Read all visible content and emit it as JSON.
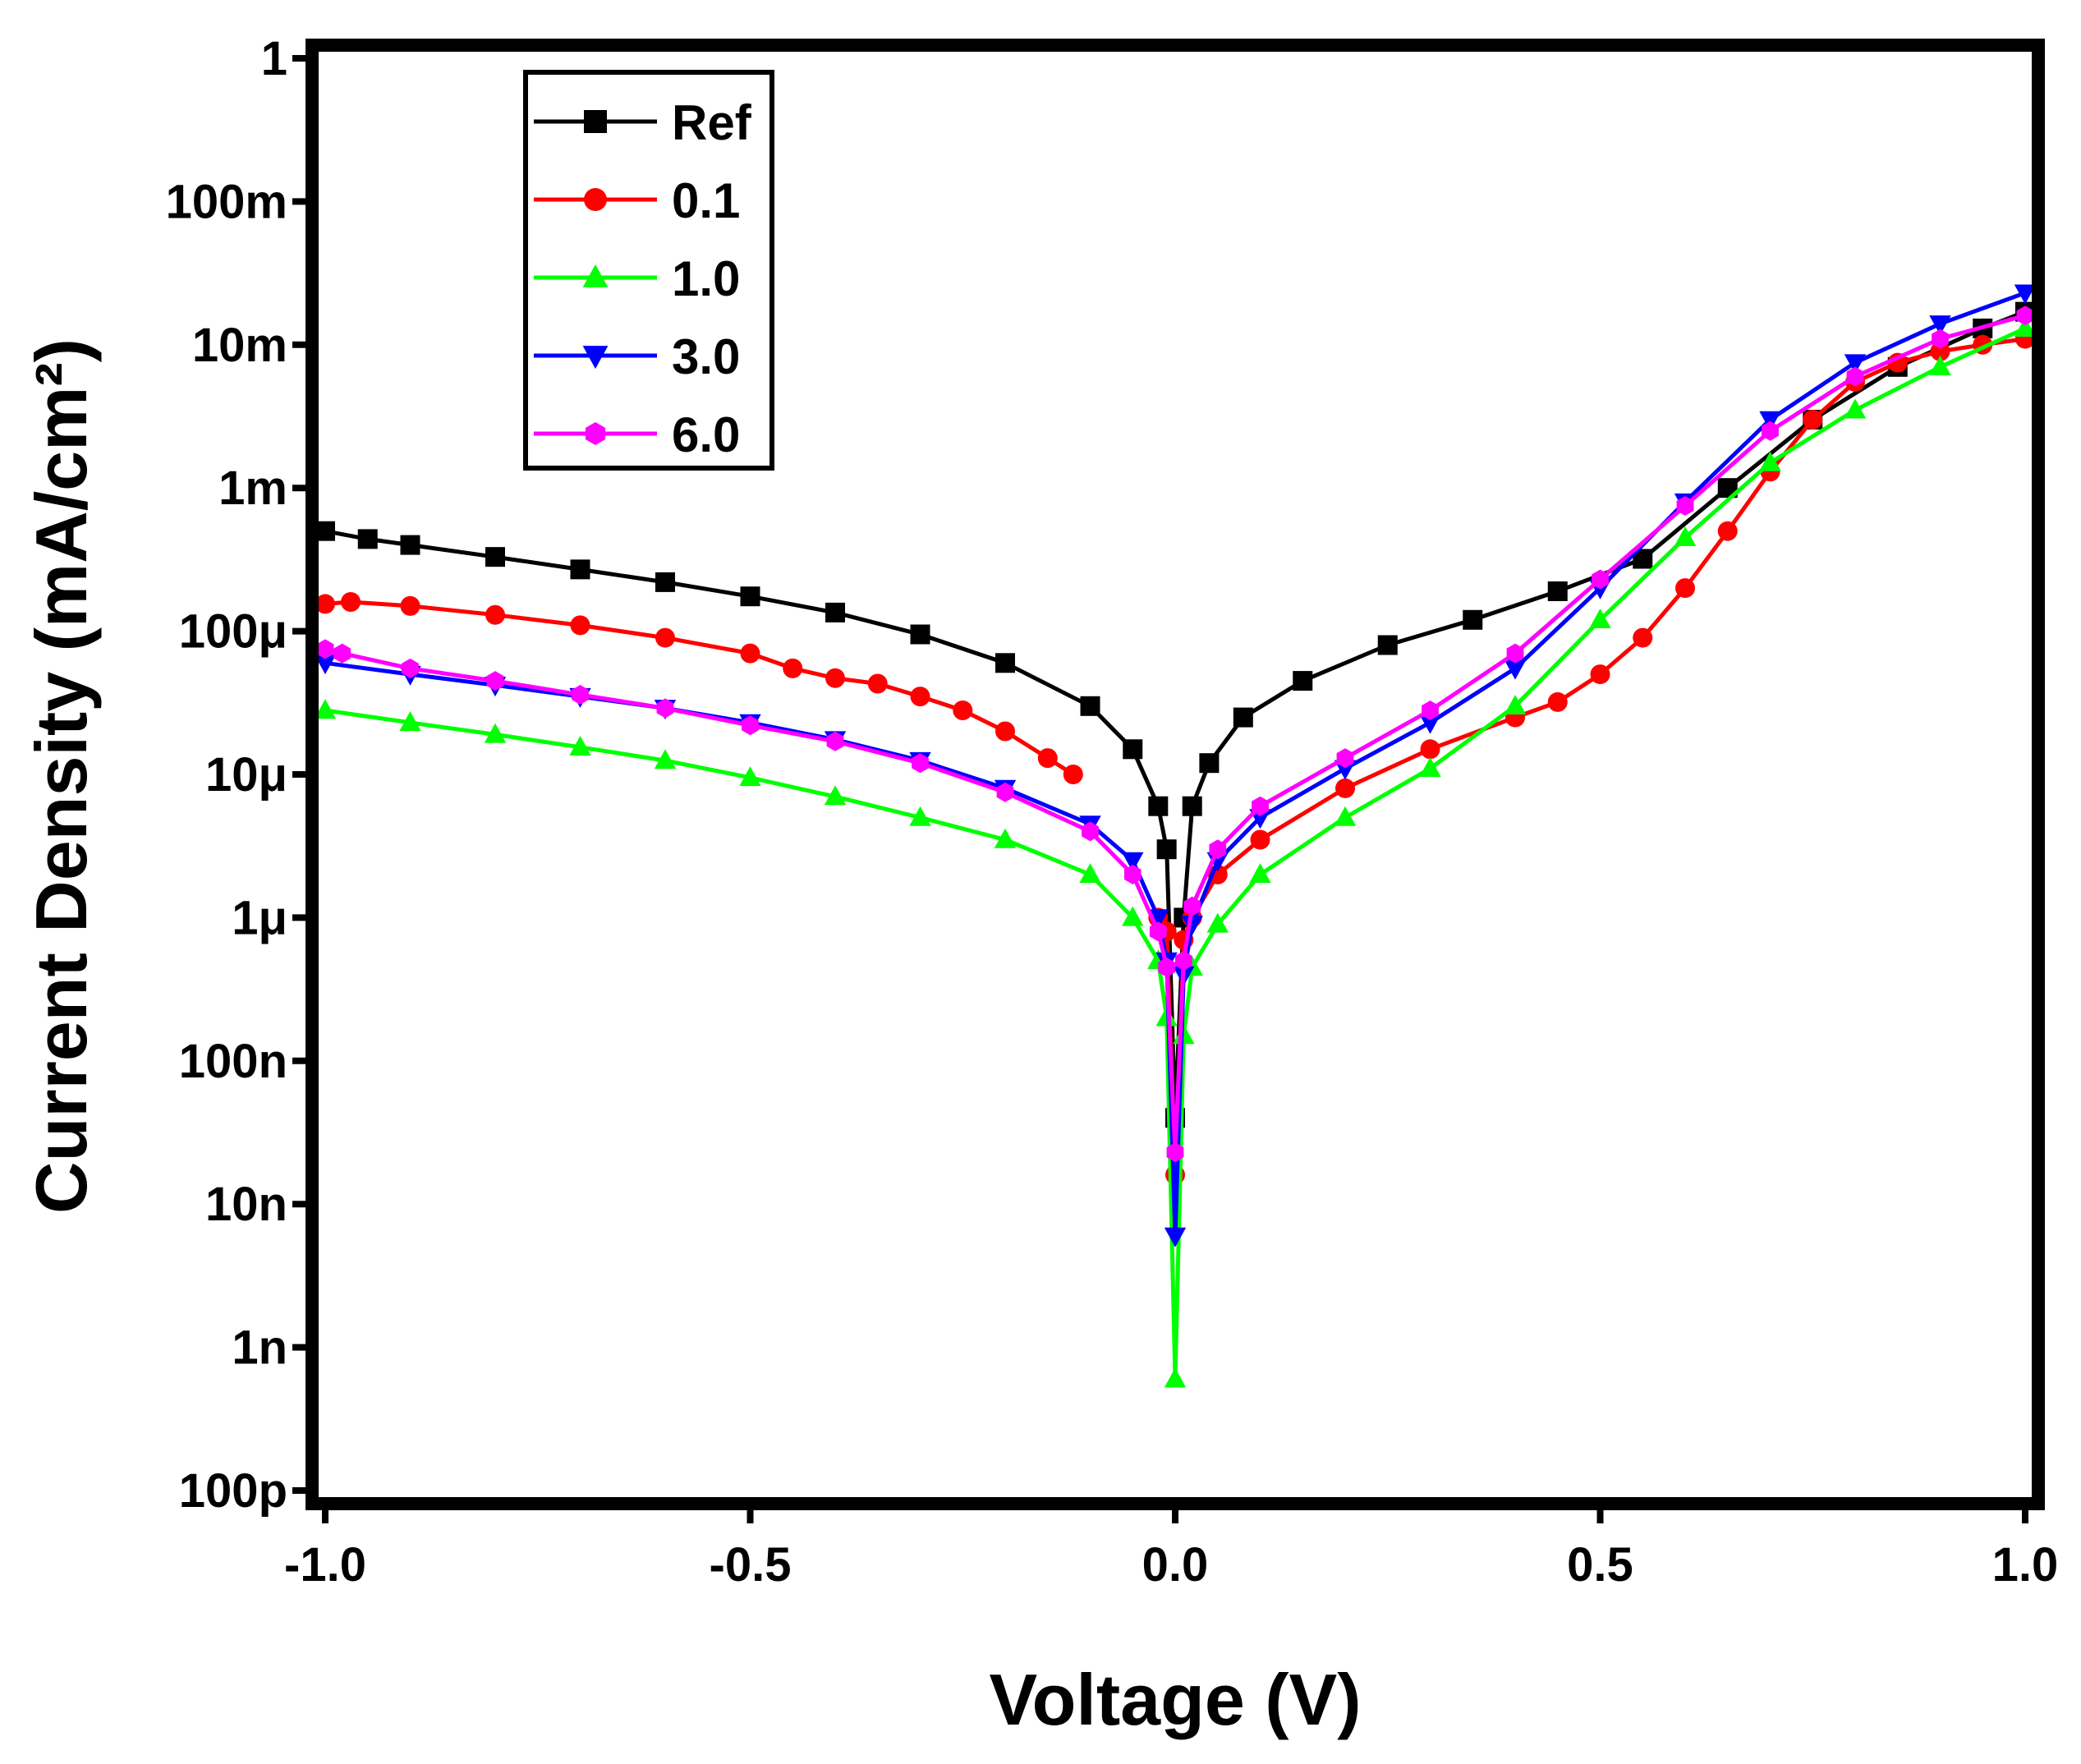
{
  "chart_data": {
    "type": "line",
    "title": "",
    "xlabel": "Voltage (V)",
    "ylabel": "Current Density (mA/cm²)",
    "xlim": [
      -1.0,
      1.0
    ],
    "ylim": [
      1e-10,
      1
    ],
    "yscale": "log",
    "grid": false,
    "legend_position": "top-left",
    "x_ticks": [
      {
        "value": -1.0,
        "label": "-1.0"
      },
      {
        "value": -0.5,
        "label": "-0.5"
      },
      {
        "value": 0.0,
        "label": "0.0"
      },
      {
        "value": 0.5,
        "label": "0.5"
      },
      {
        "value": 1.0,
        "label": "1.0"
      }
    ],
    "y_ticks": [
      {
        "value": 1e-10,
        "label": "100p"
      },
      {
        "value": 1e-09,
        "label": "1n"
      },
      {
        "value": 1e-08,
        "label": "10n"
      },
      {
        "value": 1e-07,
        "label": "100n"
      },
      {
        "value": 1e-06,
        "label": "1μ"
      },
      {
        "value": 1e-05,
        "label": "10μ"
      },
      {
        "value": 0.0001,
        "label": "100μ"
      },
      {
        "value": 0.001,
        "label": "1m"
      },
      {
        "value": 0.01,
        "label": "10m"
      },
      {
        "value": 0.1,
        "label": "100m"
      },
      {
        "value": 1,
        "label": "1"
      }
    ],
    "series": [
      {
        "name": "Ref",
        "color": "#000000",
        "marker": "square",
        "points": [
          [
            -1.0,
            0.0005
          ],
          [
            -0.95,
            0.00044
          ],
          [
            -0.9,
            0.0004
          ],
          [
            -0.8,
            0.00033
          ],
          [
            -0.7,
            0.00027
          ],
          [
            -0.6,
            0.00022
          ],
          [
            -0.5,
            0.000175
          ],
          [
            -0.4,
            0.000135
          ],
          [
            -0.3,
            9.5e-05
          ],
          [
            -0.2,
            6e-05
          ],
          [
            -0.1,
            3e-05
          ],
          [
            -0.05,
            1.5e-05
          ],
          [
            -0.02,
            6e-06
          ],
          [
            -0.01,
            3e-06
          ],
          [
            0.0,
            4e-08
          ],
          [
            0.01,
            1e-06
          ],
          [
            0.02,
            6e-06
          ],
          [
            0.04,
            1.2e-05
          ],
          [
            0.08,
            2.5e-05
          ],
          [
            0.15,
            4.5e-05
          ],
          [
            0.25,
            8e-05
          ],
          [
            0.35,
            0.00012
          ],
          [
            0.45,
            0.00019
          ],
          [
            0.55,
            0.00032
          ],
          [
            0.65,
            0.001
          ],
          [
            0.75,
            0.003
          ],
          [
            0.85,
            0.007
          ],
          [
            0.95,
            0.013
          ],
          [
            1.0,
            0.017
          ]
        ]
      },
      {
        "name": "0.1",
        "color": "#ff0000",
        "marker": "circle",
        "points": [
          [
            -1.0,
            0.000155
          ],
          [
            -0.97,
            0.00016
          ],
          [
            -0.9,
            0.00015
          ],
          [
            -0.8,
            0.00013
          ],
          [
            -0.7,
            0.00011
          ],
          [
            -0.6,
            9e-05
          ],
          [
            -0.5,
            7e-05
          ],
          [
            -0.45,
            5.5e-05
          ],
          [
            -0.4,
            4.7e-05
          ],
          [
            -0.35,
            4.3e-05
          ],
          [
            -0.3,
            3.5e-05
          ],
          [
            -0.25,
            2.8e-05
          ],
          [
            -0.2,
            2e-05
          ],
          [
            -0.15,
            1.3e-05
          ],
          [
            -0.12,
            1e-05
          ]
        ]
      },
      {
        "name": "0.1",
        "color": "#ff0000",
        "marker": "circle",
        "points": [
          [
            -0.02,
            1e-06
          ],
          [
            -0.01,
            8e-07
          ],
          [
            0.0,
            1.6e-08
          ],
          [
            0.01,
            7e-07
          ],
          [
            0.02,
            1e-06
          ],
          [
            0.05,
            2e-06
          ],
          [
            0.1,
            3.5e-06
          ],
          [
            0.2,
            8e-06
          ],
          [
            0.3,
            1.5e-05
          ],
          [
            0.4,
            2.5e-05
          ],
          [
            0.45,
            3.2e-05
          ],
          [
            0.5,
            5e-05
          ],
          [
            0.55,
            9e-05
          ],
          [
            0.6,
            0.0002
          ],
          [
            0.65,
            0.0005
          ],
          [
            0.7,
            0.0013
          ],
          [
            0.75,
            0.003
          ],
          [
            0.8,
            0.0055
          ],
          [
            0.85,
            0.0075
          ],
          [
            0.9,
            0.009
          ],
          [
            0.95,
            0.01
          ],
          [
            1.0,
            0.011
          ]
        ]
      },
      {
        "name": "1.0",
        "color": "#00ff00",
        "marker": "triangle-up",
        "points": [
          [
            -1.0,
            2.8e-05
          ],
          [
            -0.9,
            2.3e-05
          ],
          [
            -0.8,
            1.9e-05
          ],
          [
            -0.7,
            1.55e-05
          ],
          [
            -0.6,
            1.25e-05
          ],
          [
            -0.5,
            9.5e-06
          ],
          [
            -0.4,
            7e-06
          ],
          [
            -0.3,
            5e-06
          ],
          [
            -0.2,
            3.5e-06
          ],
          [
            -0.1,
            2e-06
          ],
          [
            -0.05,
            1e-06
          ],
          [
            -0.02,
            5e-07
          ],
          [
            -0.01,
            2e-07
          ],
          [
            0.0,
            6e-10
          ],
          [
            0.01,
            1.5e-07
          ],
          [
            0.02,
            4.5e-07
          ],
          [
            0.05,
            9e-07
          ],
          [
            0.1,
            2e-06
          ],
          [
            0.2,
            5e-06
          ],
          [
            0.3,
            1.1e-05
          ],
          [
            0.4,
            3e-05
          ],
          [
            0.5,
            0.00012
          ],
          [
            0.6,
            0.00045
          ],
          [
            0.7,
            0.0015
          ],
          [
            0.8,
            0.0035
          ],
          [
            0.9,
            0.007
          ],
          [
            1.0,
            0.013
          ]
        ]
      },
      {
        "name": "3.0",
        "color": "#0000ff",
        "marker": "triangle-down",
        "points": [
          [
            -1.0,
            6e-05
          ],
          [
            -0.9,
            5e-05
          ],
          [
            -0.8,
            4.2e-05
          ],
          [
            -0.7,
            3.5e-05
          ],
          [
            -0.6,
            2.9e-05
          ],
          [
            -0.5,
            2.3e-05
          ],
          [
            -0.4,
            1.75e-05
          ],
          [
            -0.3,
            1.25e-05
          ],
          [
            -0.2,
            8e-06
          ],
          [
            -0.1,
            4.5e-06
          ],
          [
            -0.05,
            2.5e-06
          ],
          [
            -0.02,
            1e-06
          ],
          [
            -0.01,
            5e-07
          ],
          [
            0.0,
            6e-09
          ],
          [
            0.01,
            4e-07
          ],
          [
            0.02,
            9e-07
          ],
          [
            0.05,
            2.5e-06
          ],
          [
            0.1,
            5e-06
          ],
          [
            0.2,
            1.1e-05
          ],
          [
            0.3,
            2.3e-05
          ],
          [
            0.4,
            5.5e-05
          ],
          [
            0.5,
            0.0002
          ],
          [
            0.6,
            0.0008
          ],
          [
            0.7,
            0.003
          ],
          [
            0.8,
            0.0075
          ],
          [
            0.9,
            0.014
          ],
          [
            1.0,
            0.023
          ]
        ]
      },
      {
        "name": "6.0",
        "color": "#ff00ff",
        "marker": "hexagon",
        "points": [
          [
            -1.0,
            7.5e-05
          ],
          [
            -0.98,
            7e-05
          ],
          [
            -0.9,
            5.5e-05
          ],
          [
            -0.8,
            4.5e-05
          ],
          [
            -0.7,
            3.6e-05
          ],
          [
            -0.6,
            2.9e-05
          ],
          [
            -0.5,
            2.2e-05
          ],
          [
            -0.4,
            1.7e-05
          ],
          [
            -0.3,
            1.2e-05
          ],
          [
            -0.2,
            7.5e-06
          ],
          [
            -0.1,
            4e-06
          ],
          [
            -0.05,
            2e-06
          ],
          [
            -0.02,
            8e-07
          ],
          [
            -0.01,
            4.5e-07
          ],
          [
            0.0,
            2.3e-08
          ],
          [
            0.01,
            5e-07
          ],
          [
            0.02,
            1.2e-06
          ],
          [
            0.05,
            3e-06
          ],
          [
            0.1,
            6e-06
          ],
          [
            0.2,
            1.3e-05
          ],
          [
            0.3,
            2.8e-05
          ],
          [
            0.4,
            7e-05
          ],
          [
            0.5,
            0.00023
          ],
          [
            0.6,
            0.00075
          ],
          [
            0.7,
            0.0025
          ],
          [
            0.8,
            0.006
          ],
          [
            0.9,
            0.011
          ],
          [
            1.0,
            0.016
          ]
        ]
      }
    ],
    "legend": [
      {
        "label": "Ref",
        "color": "#000000",
        "marker": "square"
      },
      {
        "label": "0.1",
        "color": "#ff0000",
        "marker": "circle"
      },
      {
        "label": "1.0",
        "color": "#00ff00",
        "marker": "triangle-up"
      },
      {
        "label": "3.0",
        "color": "#0000ff",
        "marker": "triangle-down"
      },
      {
        "label": "6.0",
        "color": "#ff00ff",
        "marker": "hexagon"
      }
    ]
  }
}
